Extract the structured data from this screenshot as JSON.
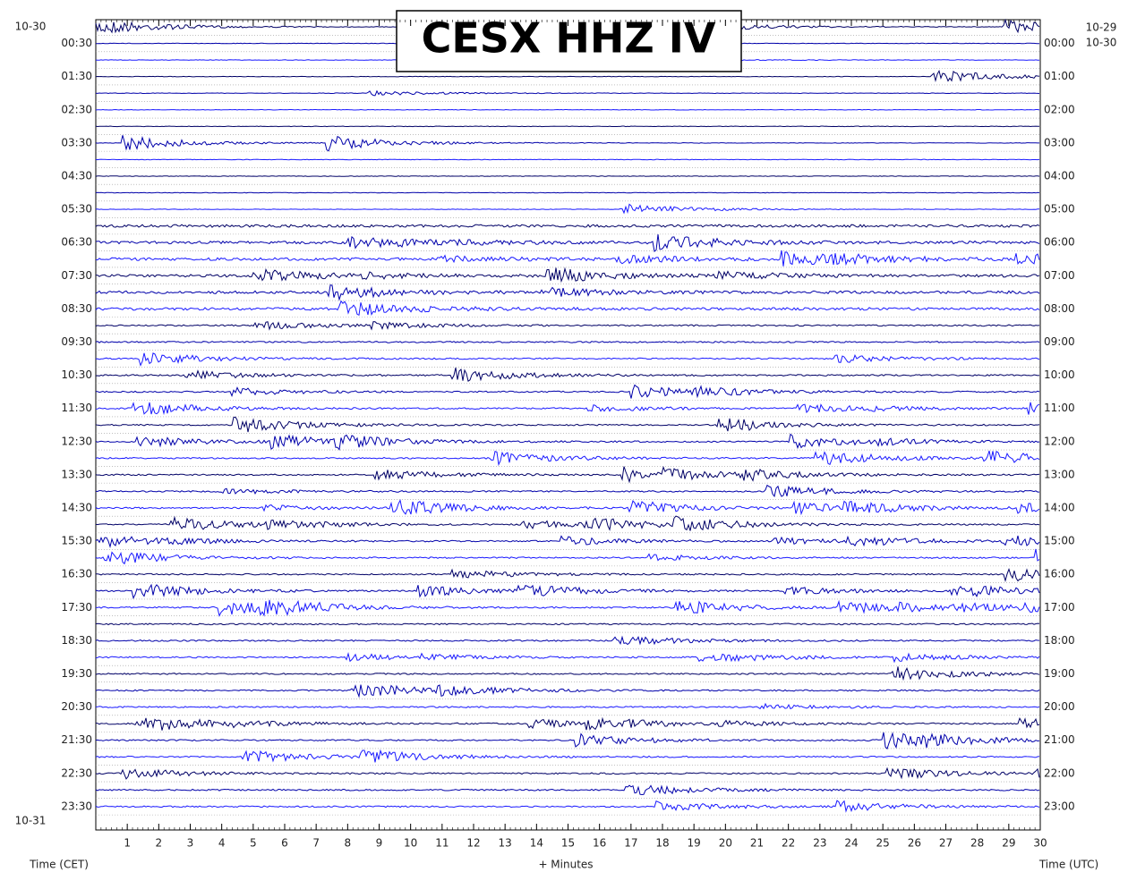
{
  "title": "CESX HHZ IV",
  "left_date_top": "10-30",
  "left_date_bottom": "10-31",
  "right_date_top": "10-29",
  "right_date_second": "10-30",
  "left_times": [
    "00:30",
    "01:30",
    "02:30",
    "03:30",
    "04:30",
    "05:30",
    "06:30",
    "07:30",
    "08:30",
    "09:30",
    "10:30",
    "11:30",
    "12:30",
    "13:30",
    "14:30",
    "15:30",
    "16:30",
    "17:30",
    "18:30",
    "19:30",
    "20:30",
    "21:30",
    "22:30",
    "23:30"
  ],
  "right_times": [
    "00:00",
    "01:00",
    "02:00",
    "03:00",
    "04:00",
    "05:00",
    "06:00",
    "07:00",
    "08:00",
    "09:00",
    "10:00",
    "11:00",
    "12:00",
    "13:00",
    "14:00",
    "15:00",
    "16:00",
    "17:00",
    "18:00",
    "19:00",
    "20:00",
    "21:00",
    "22:00",
    "23:00"
  ],
  "x_ticks": [
    1,
    2,
    3,
    4,
    5,
    6,
    7,
    8,
    9,
    10,
    11,
    12,
    13,
    14,
    15,
    16,
    17,
    18,
    19,
    20,
    21,
    22,
    23,
    24,
    25,
    26,
    27,
    28,
    29,
    30
  ],
  "x_axis_label": "+ Minutes",
  "left_axis_label": "Time (CET)",
  "right_axis_label": "Time (UTC)"
}
